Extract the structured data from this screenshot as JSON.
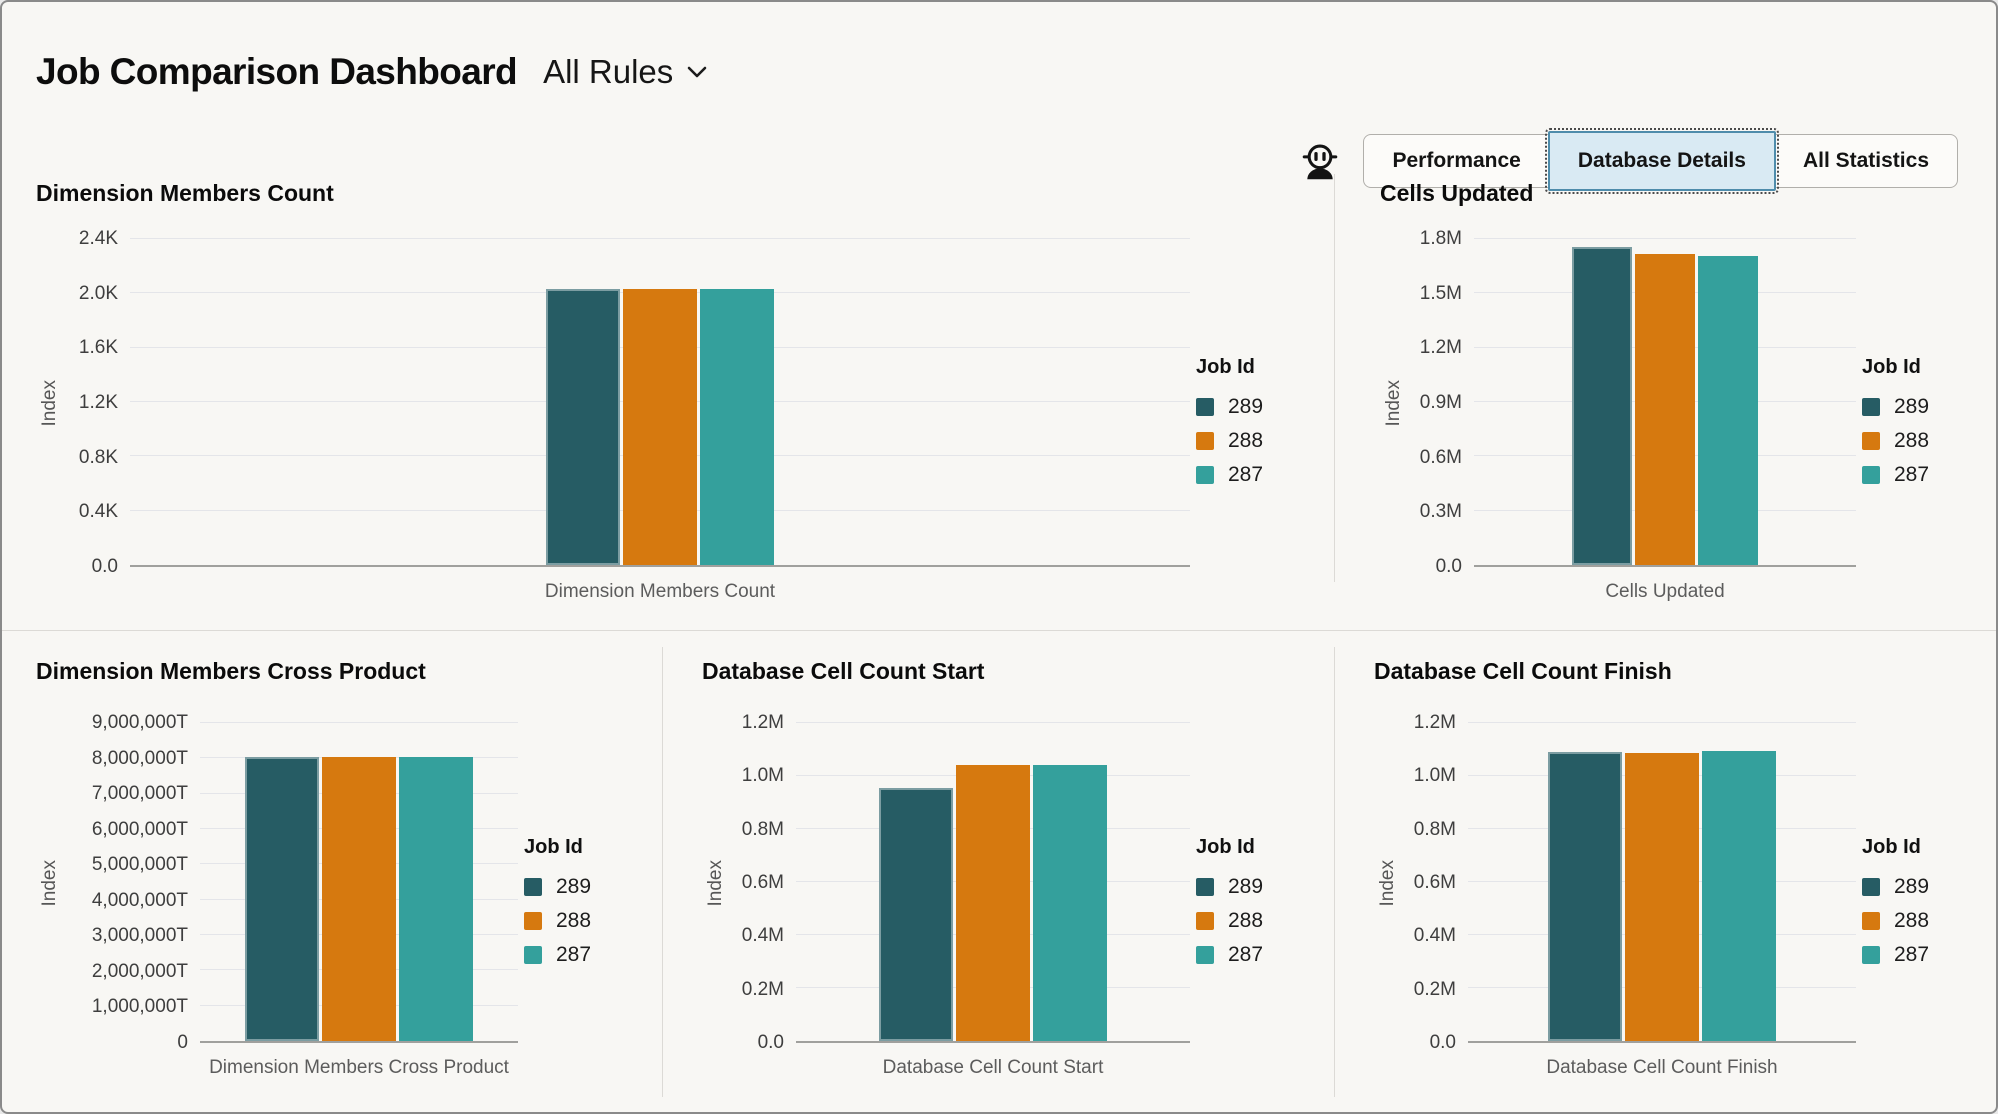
{
  "header": {
    "title": "Job Comparison Dashboard",
    "rules_filter": "All Rules"
  },
  "toolbar": {
    "buttons": [
      {
        "label": "Performance",
        "active": false
      },
      {
        "label": "Database Details",
        "active": true
      },
      {
        "label": "All Statistics",
        "active": false
      }
    ]
  },
  "legend": {
    "title": "Job Id",
    "entries": [
      {
        "label": "289",
        "color": "#265c64"
      },
      {
        "label": "288",
        "color": "#d6790f"
      },
      {
        "label": "287",
        "color": "#34a09c"
      }
    ]
  },
  "colors": {
    "job_289": "#265c64",
    "job_288": "#d6790f",
    "job_287": "#34a09c",
    "active_tab_bg": "#d9eaf3",
    "active_tab_border": "#4e8cab",
    "background": "#f8f7f4"
  },
  "chart_data": [
    {
      "type": "bar",
      "title": "Dimension Members Count",
      "xlabel": "Dimension Members Count",
      "ylabel": "Index",
      "categories": [
        "Dimension Members Count"
      ],
      "ymax": 2400,
      "yticks": [
        {
          "label": "2.4K",
          "value": 2400
        },
        {
          "label": "2.0K",
          "value": 2000
        },
        {
          "label": "1.6K",
          "value": 1600
        },
        {
          "label": "1.2K",
          "value": 1200
        },
        {
          "label": "0.8K",
          "value": 800
        },
        {
          "label": "0.4K",
          "value": 400
        },
        {
          "label": "0.0",
          "value": 0
        }
      ],
      "series": [
        {
          "name": "289",
          "value": 2030
        },
        {
          "name": "288",
          "value": 2030
        },
        {
          "name": "287",
          "value": 2030
        }
      ]
    },
    {
      "type": "bar",
      "title": "Cells Updated",
      "xlabel": "Cells Updated",
      "ylabel": "Index",
      "categories": [
        "Cells Updated"
      ],
      "ymax": 1800000,
      "yticks": [
        {
          "label": "1.8M",
          "value": 1800000
        },
        {
          "label": "1.5M",
          "value": 1500000
        },
        {
          "label": "1.2M",
          "value": 1200000
        },
        {
          "label": "0.9M",
          "value": 900000
        },
        {
          "label": "0.6M",
          "value": 600000
        },
        {
          "label": "0.3M",
          "value": 300000
        },
        {
          "label": "0.0",
          "value": 0
        }
      ],
      "series": [
        {
          "name": "289",
          "value": 1755000
        },
        {
          "name": "288",
          "value": 1715000
        },
        {
          "name": "287",
          "value": 1705000
        }
      ]
    },
    {
      "type": "bar",
      "title": "Dimension Members Cross Product",
      "xlabel": "Dimension Members Cross Product",
      "ylabel": "Index",
      "categories": [
        "Dimension Members Cross Product"
      ],
      "unit": "T",
      "ymax": 9000000,
      "yticks": [
        {
          "label": "9,000,000T",
          "value": 9000000
        },
        {
          "label": "8,000,000T",
          "value": 8000000
        },
        {
          "label": "7,000,000T",
          "value": 7000000
        },
        {
          "label": "6,000,000T",
          "value": 6000000
        },
        {
          "label": "5,000,000T",
          "value": 5000000
        },
        {
          "label": "4,000,000T",
          "value": 4000000
        },
        {
          "label": "3,000,000T",
          "value": 3000000
        },
        {
          "label": "2,000,000T",
          "value": 2000000
        },
        {
          "label": "1,000,000T",
          "value": 1000000
        },
        {
          "label": "0",
          "value": 0
        }
      ],
      "series": [
        {
          "name": "289",
          "value": 8030000
        },
        {
          "name": "288",
          "value": 8030000
        },
        {
          "name": "287",
          "value": 8030000
        }
      ]
    },
    {
      "type": "bar",
      "title": "Database Cell Count Start",
      "xlabel": "Database Cell Count Start",
      "ylabel": "Index",
      "categories": [
        "Database Cell Count Start"
      ],
      "ymax": 1200000,
      "yticks": [
        {
          "label": "1.2M",
          "value": 1200000
        },
        {
          "label": "1.0M",
          "value": 1000000
        },
        {
          "label": "0.8M",
          "value": 800000
        },
        {
          "label": "0.6M",
          "value": 600000
        },
        {
          "label": "0.4M",
          "value": 400000
        },
        {
          "label": "0.2M",
          "value": 200000
        },
        {
          "label": "0.0",
          "value": 0
        }
      ],
      "series": [
        {
          "name": "289",
          "value": 955000
        },
        {
          "name": "288",
          "value": 1040000
        },
        {
          "name": "287",
          "value": 1040000
        }
      ]
    },
    {
      "type": "bar",
      "title": "Database Cell Count Finish",
      "xlabel": "Database Cell Count Finish",
      "ylabel": "Index",
      "categories": [
        "Database Cell Count Finish"
      ],
      "ymax": 1200000,
      "yticks": [
        {
          "label": "1.2M",
          "value": 1200000
        },
        {
          "label": "1.0M",
          "value": 1000000
        },
        {
          "label": "0.8M",
          "value": 800000
        },
        {
          "label": "0.6M",
          "value": 600000
        },
        {
          "label": "0.4M",
          "value": 400000
        },
        {
          "label": "0.2M",
          "value": 200000
        },
        {
          "label": "0.0",
          "value": 0
        }
      ],
      "series": [
        {
          "name": "289",
          "value": 1090000
        },
        {
          "name": "288",
          "value": 1086000
        },
        {
          "name": "287",
          "value": 1094000
        }
      ]
    }
  ]
}
